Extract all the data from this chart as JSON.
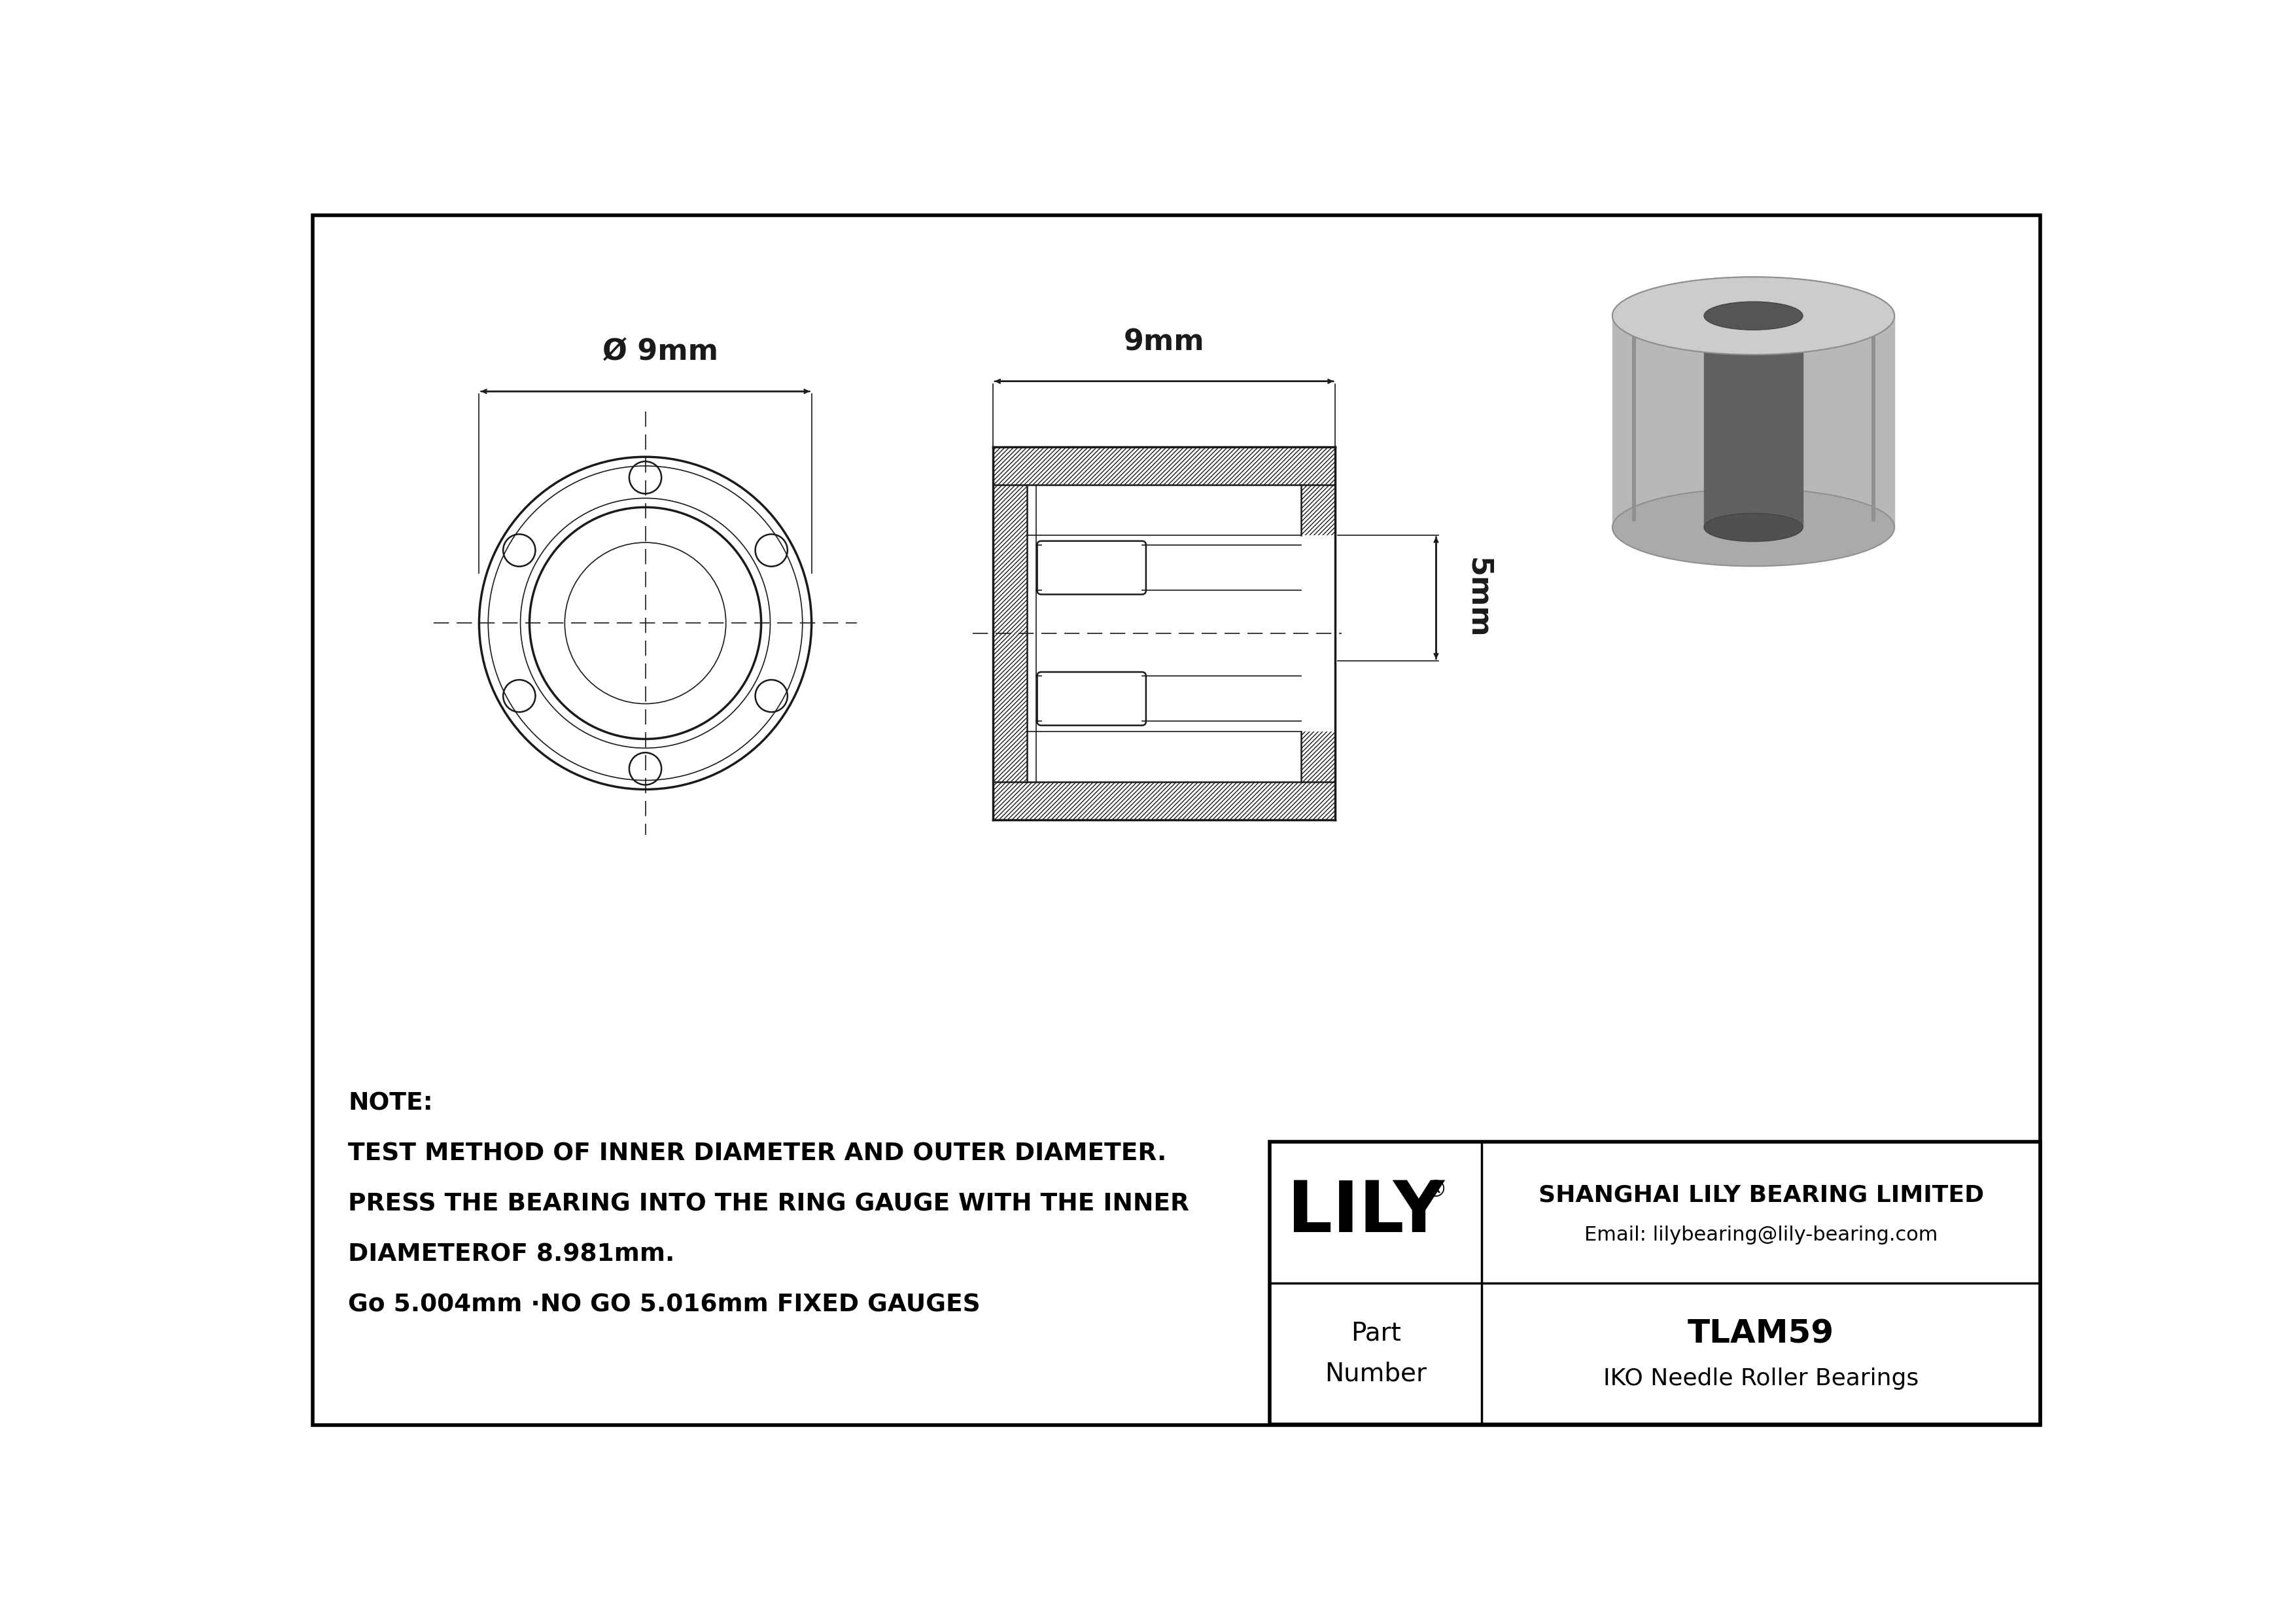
{
  "bg_color": "#ffffff",
  "border_color": "#000000",
  "drawing_color": "#1a1a1a",
  "note_line1": "NOTE:",
  "note_line2": "TEST METHOD OF INNER DIAMETER AND OUTER DIAMETER.",
  "note_line3": "PRESS THE BEARING INTO THE RING GAUGE WITH THE INNER",
  "note_line4": "DIAMETEROF 8.981mm.",
  "note_line5": "Go 5.004mm ·NO GO 5.016mm FIXED GAUGES",
  "company_name": "SHANGHAI LILY BEARING LIMITED",
  "company_email": "Email: lilybearing@lily-bearing.com",
  "logo_text": "LILY",
  "logo_sup": "®",
  "part_label": "Part\nNumber",
  "part_number": "TLAM59",
  "part_type": "IKO Needle Roller Bearings",
  "dim_outer": "Ø 9mm",
  "dim_width": "9mm",
  "dim_height": "5mm"
}
